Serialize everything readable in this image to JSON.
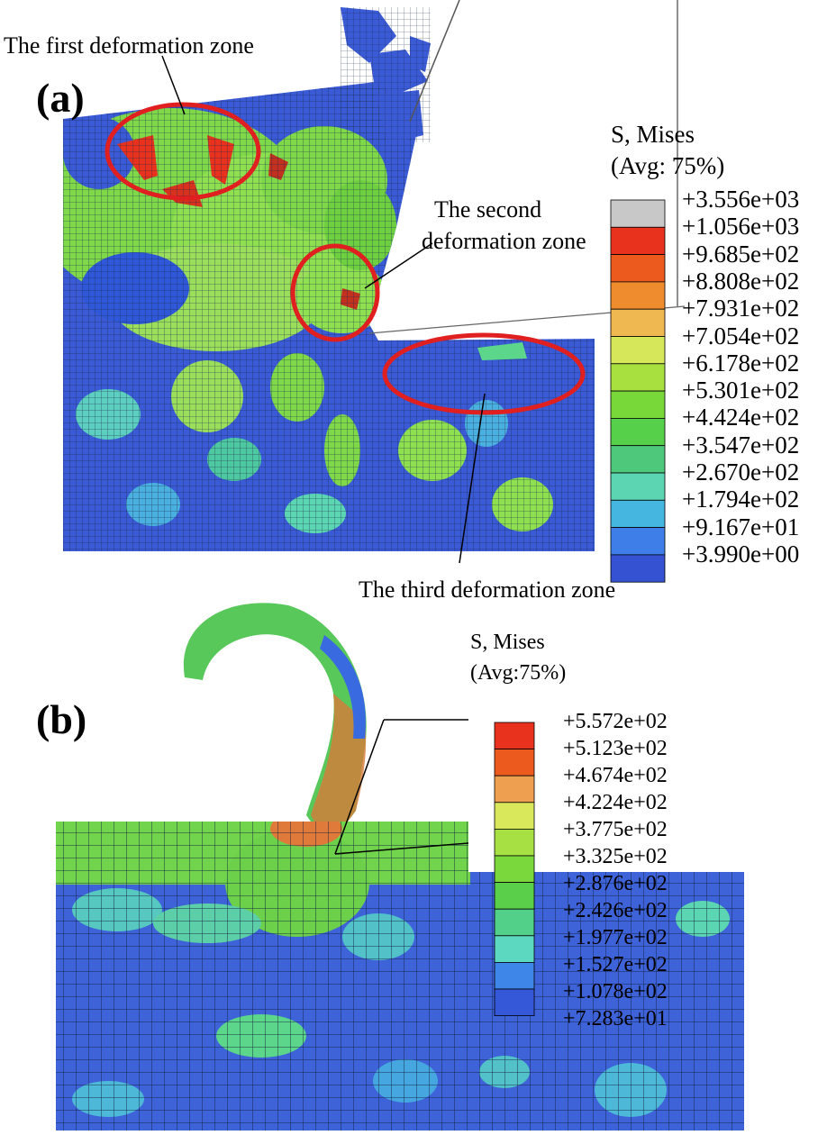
{
  "panel_a": {
    "label": "(a)",
    "zones": {
      "first": "The first deformation zone",
      "second_line1": "The second",
      "second_line2": "deformation zone",
      "third": "The third deformation zone"
    },
    "legend": {
      "title_line1": "S, Mises",
      "title_line2": "(Avg: 75%)",
      "values": [
        "+3.556e+03",
        "+1.056e+03",
        "+9.685e+02",
        "+8.808e+02",
        "+7.931e+02",
        "+7.054e+02",
        "+6.178e+02",
        "+5.301e+02",
        "+4.424e+02",
        "+3.547e+02",
        "+2.670e+02",
        "+1.794e+02",
        "+9.167e+01",
        "+3.990e+00"
      ],
      "colors": [
        "#c8c8c8",
        "#e8321e",
        "#ec5a1e",
        "#ee8c2e",
        "#f0b850",
        "#d6e85a",
        "#a8e040",
        "#78d83a",
        "#56d04a",
        "#4ec87a",
        "#5cd6b2",
        "#44b6e0",
        "#3e7ee8",
        "#3452d2"
      ]
    }
  },
  "panel_b": {
    "label": "(b)",
    "legend": {
      "title_line1": "S, Mises",
      "title_line2": "(Avg:75%)",
      "values": [
        "+5.572e+02",
        "+5.123e+02",
        "+4.674e+02",
        "+4.224e+02",
        "+3.775e+02",
        "+3.325e+02",
        "+2.876e+02",
        "+2.426e+02",
        "+1.977e+02",
        "+1.527e+02",
        "+1.078e+02",
        "+7.283e+01"
      ],
      "colors": [
        "#e8321e",
        "#ec5a1e",
        "#eea050",
        "#d8e85a",
        "#a6e042",
        "#7ad83c",
        "#5ad04a",
        "#52d08a",
        "#5cd8c0",
        "#3e86e8",
        "#3458d8"
      ]
    }
  }
}
